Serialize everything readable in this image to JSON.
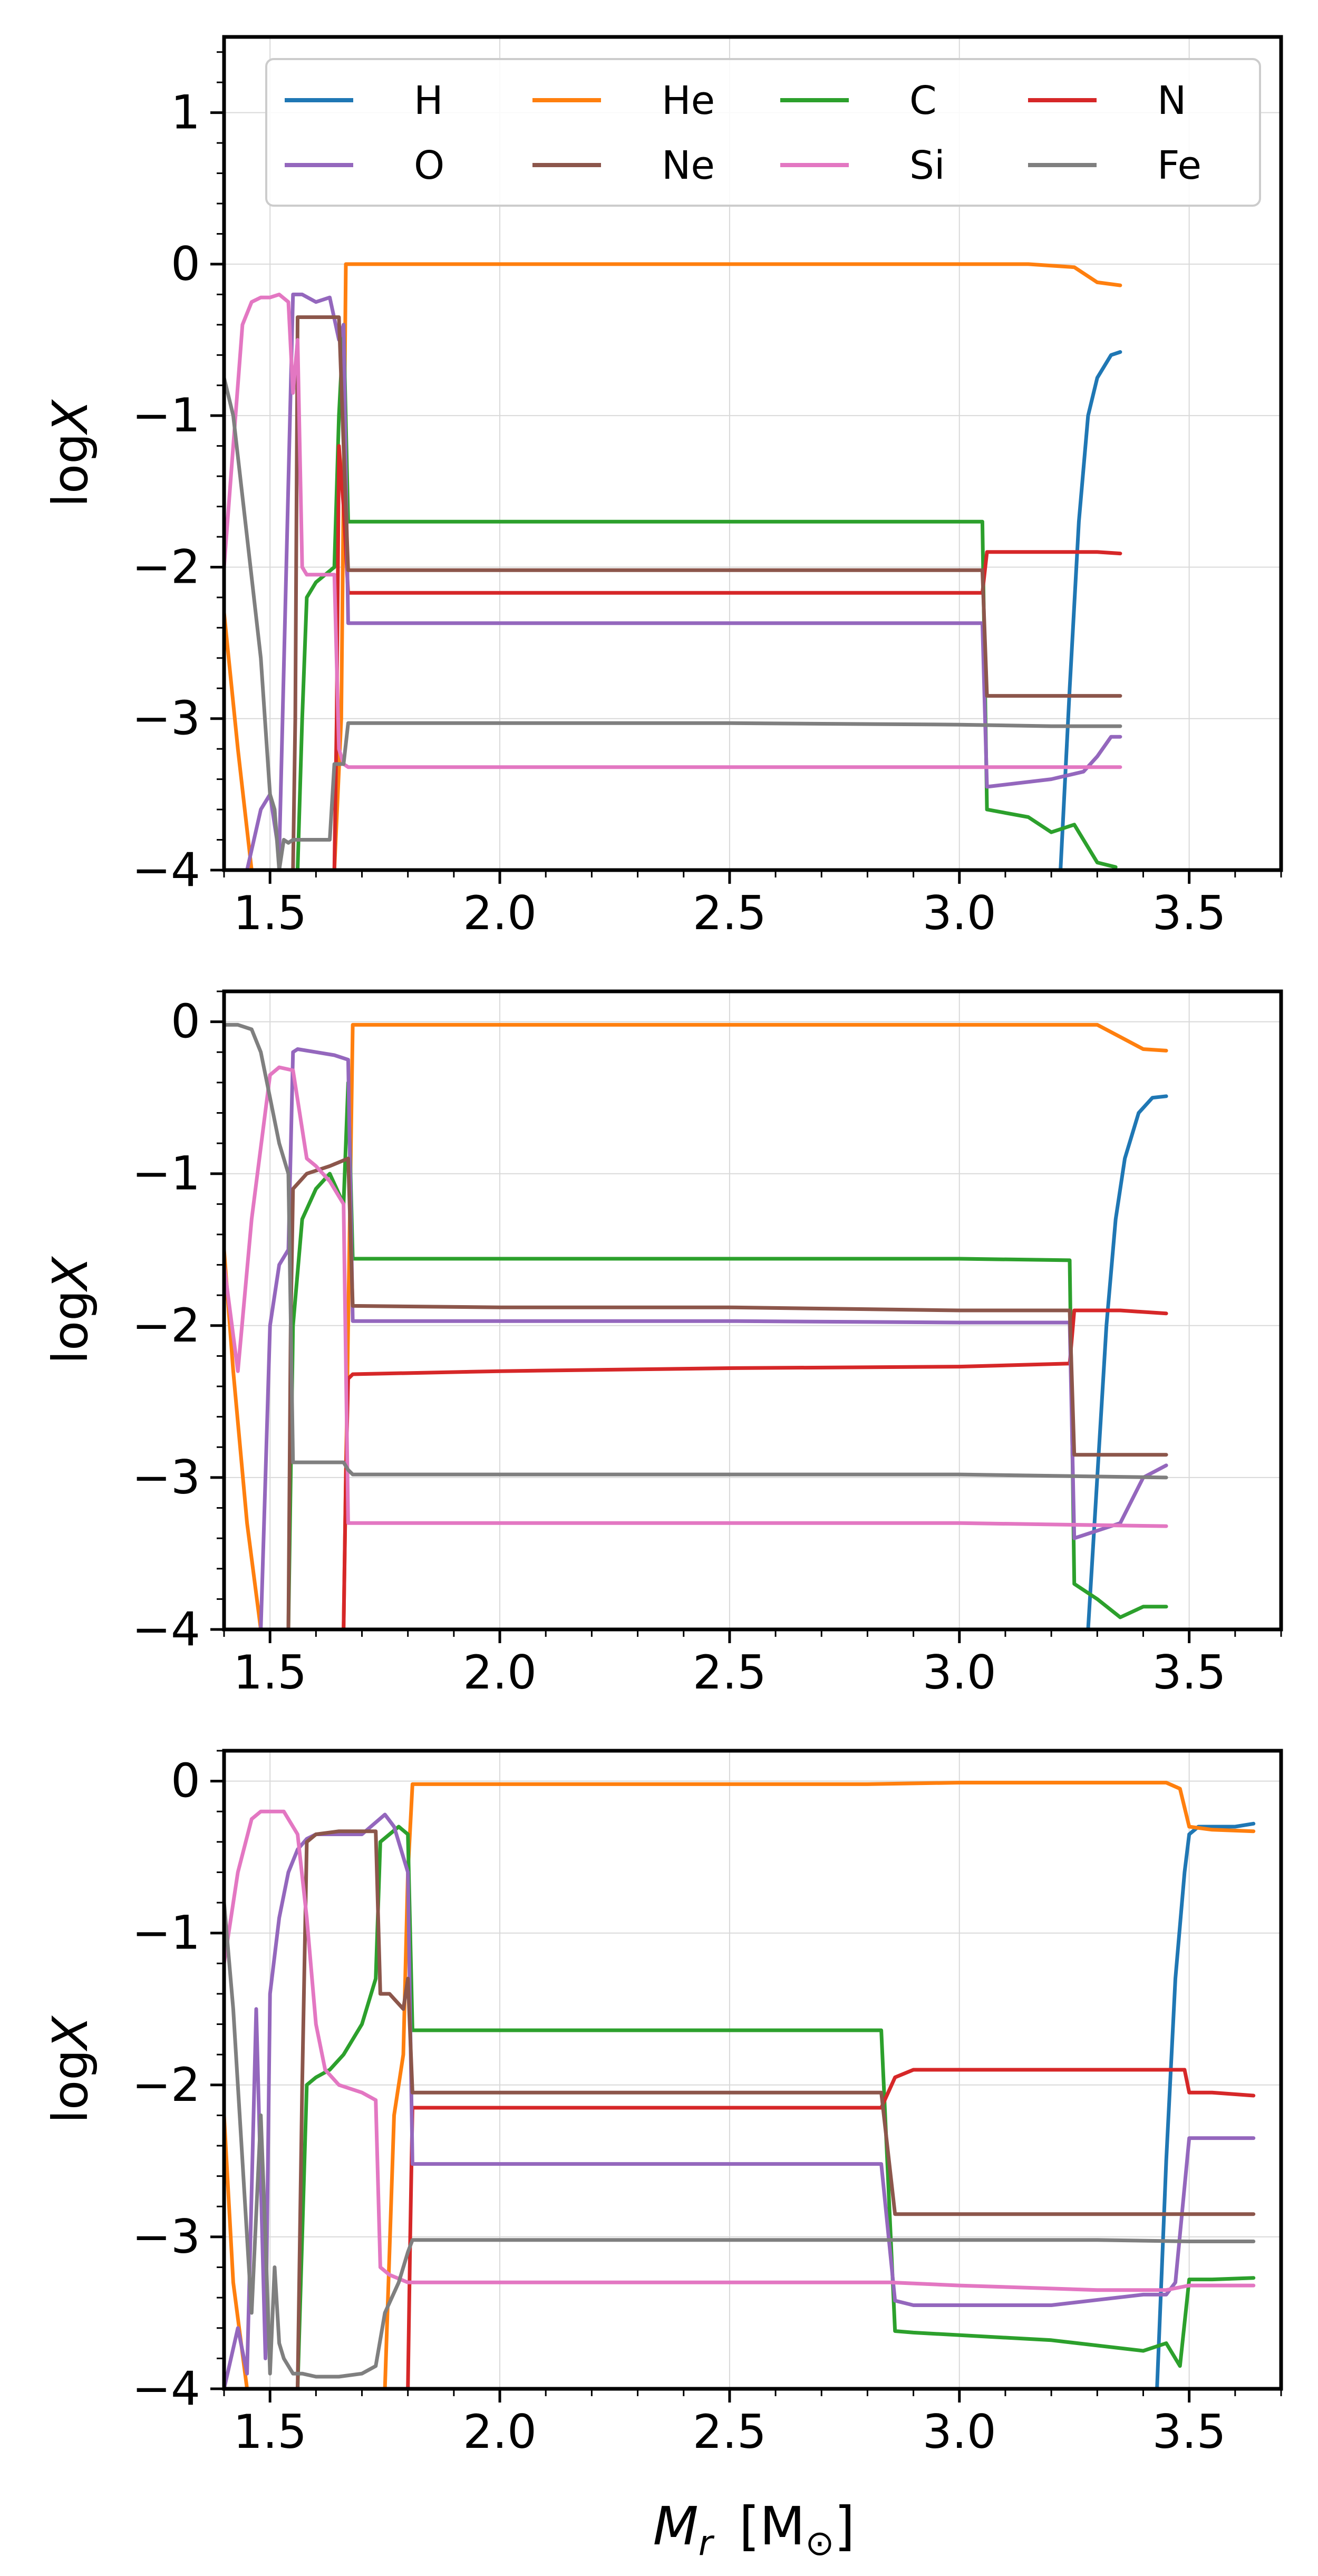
{
  "figure": {
    "colors": {
      "H": "#1f77b4",
      "He": "#ff7f0e",
      "C": "#2ca02c",
      "N": "#d62728",
      "O": "#9467bd",
      "Ne": "#8c564b",
      "Si": "#e377c2",
      "Fe": "#7f7f7f"
    },
    "legend": {
      "location": "top-right of top panel",
      "columns": 4,
      "entries": [
        "H",
        "He",
        "C",
        "N",
        "O",
        "Ne",
        "Si",
        "Fe"
      ]
    },
    "xlabel_main": "M",
    "xlabel_sub": "r",
    "xlabel_unit": "[M",
    "xlabel_unit_sub": "⊙",
    "xlabel_unit_close": "]",
    "ylabel_prefix": "log",
    "ylabel_var": "X"
  },
  "chart_data": [
    {
      "type": "line",
      "panel": "top",
      "xlabel": "",
      "ylabel": "logX",
      "xlim": [
        1.4,
        3.7
      ],
      "ylim": [
        -4,
        1.5
      ],
      "grid": true,
      "legend": true,
      "xticks": [
        "1.5",
        "2.0",
        "2.5",
        "3.0",
        "3.5"
      ],
      "yticks": [
        "1",
        "0",
        "−1",
        "−2",
        "−3",
        "−4"
      ],
      "series": [
        {
          "name": "H",
          "x": [
            3.22,
            3.24,
            3.26,
            3.28,
            3.3,
            3.33,
            3.35
          ],
          "y": [
            -4.0,
            -2.8,
            -1.7,
            -1.0,
            -0.75,
            -0.6,
            -0.58
          ]
        },
        {
          "name": "He",
          "x": [
            1.4,
            1.43,
            1.46,
            1.5,
            1.55,
            1.6,
            1.64,
            1.655,
            1.665,
            2.0,
            2.5,
            3.0,
            3.15,
            3.25,
            3.3,
            3.35
          ],
          "y": [
            -2.3,
            -3.2,
            -4.0,
            -4.0,
            -4.0,
            -4.0,
            -4.0,
            -3.0,
            0.0,
            0.0,
            0.0,
            0.0,
            0.0,
            -0.02,
            -0.12,
            -0.14
          ]
        },
        {
          "name": "C",
          "x": [
            1.56,
            1.57,
            1.58,
            1.6,
            1.62,
            1.64,
            1.65,
            1.66,
            1.67,
            2.0,
            2.5,
            3.0,
            3.05,
            3.06,
            3.15,
            3.2,
            3.25,
            3.3,
            3.34
          ],
          "y": [
            -4.0,
            -3.0,
            -2.2,
            -2.1,
            -2.05,
            -2.0,
            -1.0,
            -0.4,
            -1.7,
            -1.7,
            -1.7,
            -1.7,
            -1.7,
            -3.6,
            -3.65,
            -3.75,
            -3.7,
            -3.95,
            -3.98
          ]
        },
        {
          "name": "N",
          "x": [
            1.64,
            1.645,
            1.65,
            1.66,
            1.67,
            2.0,
            2.5,
            3.0,
            3.05,
            3.06,
            3.2,
            3.3,
            3.35
          ],
          "y": [
            -4.0,
            -3.0,
            -1.2,
            -1.6,
            -2.17,
            -2.17,
            -2.17,
            -2.17,
            -2.17,
            -1.9,
            -1.9,
            -1.9,
            -1.91
          ]
        },
        {
          "name": "O",
          "x": [
            1.4,
            1.45,
            1.48,
            1.5,
            1.52,
            1.55,
            1.57,
            1.6,
            1.63,
            1.65,
            1.66,
            1.67,
            2.0,
            2.5,
            3.0,
            3.05,
            3.06,
            3.2,
            3.27,
            3.3,
            3.33,
            3.35
          ],
          "y": [
            -4.0,
            -4.0,
            -3.6,
            -3.5,
            -3.9,
            -0.2,
            -0.2,
            -0.25,
            -0.22,
            -0.5,
            -0.4,
            -2.37,
            -2.37,
            -2.37,
            -2.37,
            -2.37,
            -3.45,
            -3.4,
            -3.35,
            -3.25,
            -3.12,
            -3.12
          ]
        },
        {
          "name": "Ne",
          "x": [
            1.55,
            1.555,
            1.56,
            1.58,
            1.62,
            1.65,
            1.66,
            1.67,
            2.0,
            2.5,
            3.0,
            3.05,
            3.06,
            3.2,
            3.35
          ],
          "y": [
            -4.0,
            -3.0,
            -0.35,
            -0.35,
            -0.35,
            -0.35,
            -1.2,
            -2.02,
            -2.02,
            -2.02,
            -2.02,
            -2.02,
            -2.85,
            -2.85,
            -2.85
          ]
        },
        {
          "name": "Si",
          "x": [
            1.4,
            1.42,
            1.44,
            1.46,
            1.48,
            1.5,
            1.52,
            1.54,
            1.55,
            1.56,
            1.57,
            1.58,
            1.6,
            1.62,
            1.64,
            1.65,
            1.66,
            1.67,
            2.0,
            2.5,
            3.0,
            3.2,
            3.35
          ],
          "y": [
            -2.0,
            -1.2,
            -0.4,
            -0.25,
            -0.22,
            -0.22,
            -0.2,
            -0.25,
            -0.85,
            -0.5,
            -2.0,
            -2.05,
            -2.05,
            -2.05,
            -2.05,
            -3.2,
            -3.3,
            -3.32,
            -3.32,
            -3.32,
            -3.32,
            -3.32,
            -3.32
          ]
        },
        {
          "name": "Fe",
          "x": [
            1.4,
            1.42,
            1.45,
            1.48,
            1.5,
            1.51,
            1.52,
            1.53,
            1.54,
            1.55,
            1.6,
            1.63,
            1.64,
            1.65,
            1.66,
            1.67,
            2.0,
            2.5,
            3.0,
            3.2,
            3.35
          ],
          "y": [
            -0.75,
            -1.0,
            -1.8,
            -2.6,
            -3.5,
            -3.6,
            -4.0,
            -3.8,
            -3.82,
            -3.8,
            -3.8,
            -3.8,
            -3.3,
            -3.3,
            -3.3,
            -3.03,
            -3.03,
            -3.03,
            -3.04,
            -3.05,
            -3.05
          ]
        }
      ]
    },
    {
      "type": "line",
      "panel": "middle",
      "xlabel": "",
      "ylabel": "logX",
      "xlim": [
        1.4,
        3.7
      ],
      "ylim": [
        -4,
        0.2
      ],
      "grid": true,
      "legend": false,
      "xticks": [
        "1.5",
        "2.0",
        "2.5",
        "3.0",
        "3.5"
      ],
      "yticks": [
        "0",
        "−1",
        "−2",
        "−3",
        "−4"
      ],
      "series": [
        {
          "name": "H",
          "x": [
            3.28,
            3.3,
            3.32,
            3.34,
            3.36,
            3.39,
            3.42,
            3.45
          ],
          "y": [
            -4.0,
            -3.0,
            -2.0,
            -1.3,
            -0.9,
            -0.6,
            -0.5,
            -0.49
          ]
        },
        {
          "name": "He",
          "x": [
            1.4,
            1.42,
            1.45,
            1.48,
            1.5,
            1.6,
            1.66,
            1.67,
            1.68,
            2.0,
            2.5,
            3.0,
            3.2,
            3.3,
            3.35,
            3.4,
            3.45
          ],
          "y": [
            -1.5,
            -2.3,
            -3.3,
            -4.0,
            -4.0,
            -4.0,
            -4.0,
            -2.0,
            -0.02,
            -0.02,
            -0.02,
            -0.02,
            -0.02,
            -0.02,
            -0.1,
            -0.18,
            -0.19
          ]
        },
        {
          "name": "C",
          "x": [
            1.54,
            1.545,
            1.55,
            1.57,
            1.6,
            1.63,
            1.66,
            1.67,
            1.68,
            2.0,
            2.5,
            3.0,
            3.24,
            3.25,
            3.3,
            3.35,
            3.4,
            3.45
          ],
          "y": [
            -4.0,
            -3.0,
            -2.0,
            -1.3,
            -1.1,
            -1.0,
            -1.2,
            -0.4,
            -1.56,
            -1.56,
            -1.56,
            -1.56,
            -1.57,
            -3.7,
            -3.8,
            -3.92,
            -3.85,
            -3.85
          ]
        },
        {
          "name": "N",
          "x": [
            1.66,
            1.665,
            1.67,
            1.68,
            2.0,
            2.5,
            3.0,
            3.24,
            3.25,
            3.3,
            3.35,
            3.45
          ],
          "y": [
            -4.0,
            -3.0,
            -2.35,
            -2.32,
            -2.3,
            -2.28,
            -2.27,
            -2.25,
            -1.9,
            -1.9,
            -1.9,
            -1.92
          ]
        },
        {
          "name": "O",
          "x": [
            1.48,
            1.49,
            1.5,
            1.52,
            1.54,
            1.55,
            1.56,
            1.6,
            1.64,
            1.67,
            1.68,
            2.0,
            2.5,
            3.0,
            3.24,
            3.25,
            3.3,
            3.35,
            3.4,
            3.45
          ],
          "y": [
            -4.0,
            -3.0,
            -2.0,
            -1.6,
            -1.5,
            -0.2,
            -0.18,
            -0.2,
            -0.22,
            -0.25,
            -1.97,
            -1.97,
            -1.97,
            -1.98,
            -1.98,
            -3.4,
            -3.35,
            -3.3,
            -3.0,
            -2.92
          ]
        },
        {
          "name": "Ne",
          "x": [
            1.54,
            1.545,
            1.55,
            1.58,
            1.63,
            1.67,
            1.68,
            2.0,
            2.5,
            3.0,
            3.24,
            3.25,
            3.35,
            3.45
          ],
          "y": [
            -4.0,
            -2.0,
            -1.1,
            -1.0,
            -0.95,
            -0.9,
            -1.87,
            -1.88,
            -1.88,
            -1.9,
            -1.9,
            -2.85,
            -2.85,
            -2.85
          ]
        },
        {
          "name": "Si",
          "x": [
            1.4,
            1.43,
            1.46,
            1.5,
            1.52,
            1.55,
            1.58,
            1.6,
            1.63,
            1.66,
            1.67,
            1.68,
            2.0,
            2.5,
            3.0,
            3.45
          ],
          "y": [
            -1.6,
            -2.3,
            -1.3,
            -0.35,
            -0.3,
            -0.32,
            -0.9,
            -0.95,
            -1.05,
            -1.2,
            -3.3,
            -3.3,
            -3.3,
            -3.3,
            -3.3,
            -3.32
          ]
        },
        {
          "name": "Fe",
          "x": [
            1.4,
            1.43,
            1.46,
            1.48,
            1.5,
            1.52,
            1.54,
            1.55,
            1.6,
            1.66,
            1.67,
            1.68,
            2.0,
            2.5,
            3.0,
            3.45
          ],
          "y": [
            -0.02,
            -0.02,
            -0.05,
            -0.2,
            -0.5,
            -0.8,
            -1.0,
            -2.9,
            -2.9,
            -2.9,
            -2.95,
            -2.98,
            -2.98,
            -2.98,
            -2.98,
            -3.0
          ]
        }
      ]
    },
    {
      "type": "line",
      "panel": "bottom",
      "xlabel": "M_r [M_⊙]",
      "ylabel": "logX",
      "xlim": [
        1.4,
        3.7
      ],
      "ylim": [
        -4,
        0.2
      ],
      "grid": true,
      "legend": false,
      "xticks": [
        "1.5",
        "2.0",
        "2.5",
        "3.0",
        "3.5"
      ],
      "yticks": [
        "0",
        "−1",
        "−2",
        "−3",
        "−4"
      ],
      "series": [
        {
          "name": "H",
          "x": [
            3.43,
            3.45,
            3.47,
            3.49,
            3.5,
            3.52,
            3.55,
            3.6,
            3.64
          ],
          "y": [
            -4.0,
            -2.5,
            -1.3,
            -0.6,
            -0.35,
            -0.3,
            -0.3,
            -0.3,
            -0.28
          ]
        },
        {
          "name": "He",
          "x": [
            1.4,
            1.42,
            1.45,
            1.48,
            1.5,
            1.6,
            1.7,
            1.75,
            1.77,
            1.79,
            1.8,
            1.81,
            2.0,
            2.5,
            2.8,
            3.0,
            3.3,
            3.45,
            3.48,
            3.5,
            3.55,
            3.64
          ],
          "y": [
            -2.2,
            -3.3,
            -4.0,
            -4.0,
            -4.0,
            -4.0,
            -4.0,
            -4.0,
            -2.2,
            -1.8,
            -0.6,
            -0.02,
            -0.02,
            -0.02,
            -0.02,
            -0.01,
            -0.01,
            -0.01,
            -0.05,
            -0.3,
            -0.32,
            -0.33
          ]
        },
        {
          "name": "C",
          "x": [
            1.56,
            1.57,
            1.58,
            1.6,
            1.63,
            1.66,
            1.7,
            1.73,
            1.74,
            1.76,
            1.78,
            1.8,
            1.81,
            2.0,
            2.5,
            2.83,
            2.86,
            2.9,
            3.2,
            3.4,
            3.45,
            3.48,
            3.5,
            3.55,
            3.64
          ],
          "y": [
            -4.0,
            -3.0,
            -2.0,
            -1.95,
            -1.9,
            -1.8,
            -1.6,
            -1.3,
            -0.4,
            -0.35,
            -0.3,
            -0.35,
            -1.64,
            -1.64,
            -1.64,
            -1.64,
            -3.62,
            -3.63,
            -3.68,
            -3.75,
            -3.7,
            -3.85,
            -3.28,
            -3.28,
            -3.27
          ]
        },
        {
          "name": "N",
          "x": [
            1.8,
            1.805,
            1.81,
            2.0,
            2.5,
            2.83,
            2.86,
            2.9,
            3.2,
            3.49,
            3.5,
            3.55,
            3.64
          ],
          "y": [
            -4.0,
            -3.0,
            -2.15,
            -2.15,
            -2.15,
            -2.15,
            -1.95,
            -1.9,
            -1.9,
            -1.9,
            -2.05,
            -2.05,
            -2.07
          ]
        },
        {
          "name": "O",
          "x": [
            1.4,
            1.43,
            1.45,
            1.47,
            1.49,
            1.5,
            1.52,
            1.54,
            1.56,
            1.58,
            1.6,
            1.65,
            1.7,
            1.75,
            1.77,
            1.8,
            1.81,
            2.0,
            2.5,
            2.83,
            2.86,
            2.9,
            3.2,
            3.4,
            3.45,
            3.47,
            3.5,
            3.55,
            3.64
          ],
          "y": [
            -4.0,
            -3.6,
            -3.9,
            -1.5,
            -3.8,
            -1.4,
            -0.9,
            -0.6,
            -0.45,
            -0.38,
            -0.35,
            -0.35,
            -0.35,
            -0.22,
            -0.3,
            -0.6,
            -2.52,
            -2.52,
            -2.52,
            -2.52,
            -3.42,
            -3.45,
            -3.45,
            -3.38,
            -3.38,
            -3.3,
            -2.35,
            -2.35,
            -2.35
          ]
        },
        {
          "name": "Ne",
          "x": [
            1.56,
            1.57,
            1.58,
            1.6,
            1.65,
            1.7,
            1.73,
            1.74,
            1.76,
            1.79,
            1.8,
            1.81,
            2.0,
            2.5,
            2.83,
            2.86,
            2.9,
            3.3,
            3.64
          ],
          "y": [
            -4.0,
            -2.0,
            -0.4,
            -0.35,
            -0.33,
            -0.33,
            -0.33,
            -1.4,
            -1.4,
            -1.5,
            -1.3,
            -2.05,
            -2.05,
            -2.05,
            -2.05,
            -2.85,
            -2.85,
            -2.85,
            -2.85
          ]
        },
        {
          "name": "Si",
          "x": [
            1.4,
            1.43,
            1.46,
            1.48,
            1.5,
            1.53,
            1.56,
            1.58,
            1.6,
            1.62,
            1.65,
            1.7,
            1.73,
            1.74,
            1.76,
            1.8,
            1.81,
            2.0,
            2.5,
            2.85,
            3.0,
            3.3,
            3.45,
            3.5,
            3.64
          ],
          "y": [
            -1.2,
            -0.6,
            -0.25,
            -0.2,
            -0.2,
            -0.2,
            -0.35,
            -0.9,
            -1.6,
            -1.9,
            -2.0,
            -2.05,
            -2.1,
            -3.2,
            -3.25,
            -3.3,
            -3.3,
            -3.3,
            -3.3,
            -3.3,
            -3.32,
            -3.35,
            -3.35,
            -3.32,
            -3.32
          ]
        },
        {
          "name": "Fe",
          "x": [
            1.4,
            1.42,
            1.44,
            1.46,
            1.48,
            1.49,
            1.5,
            1.51,
            1.52,
            1.53,
            1.55,
            1.57,
            1.6,
            1.65,
            1.7,
            1.73,
            1.75,
            1.78,
            1.8,
            1.81,
            2.0,
            2.5,
            3.0,
            3.3,
            3.5,
            3.64
          ],
          "y": [
            -0.8,
            -1.5,
            -2.5,
            -3.5,
            -2.2,
            -3.0,
            -3.9,
            -3.2,
            -3.7,
            -3.8,
            -3.9,
            -3.9,
            -3.92,
            -3.92,
            -3.9,
            -3.85,
            -3.5,
            -3.3,
            -3.1,
            -3.02,
            -3.02,
            -3.02,
            -3.02,
            -3.02,
            -3.03,
            -3.03
          ]
        }
      ]
    }
  ]
}
